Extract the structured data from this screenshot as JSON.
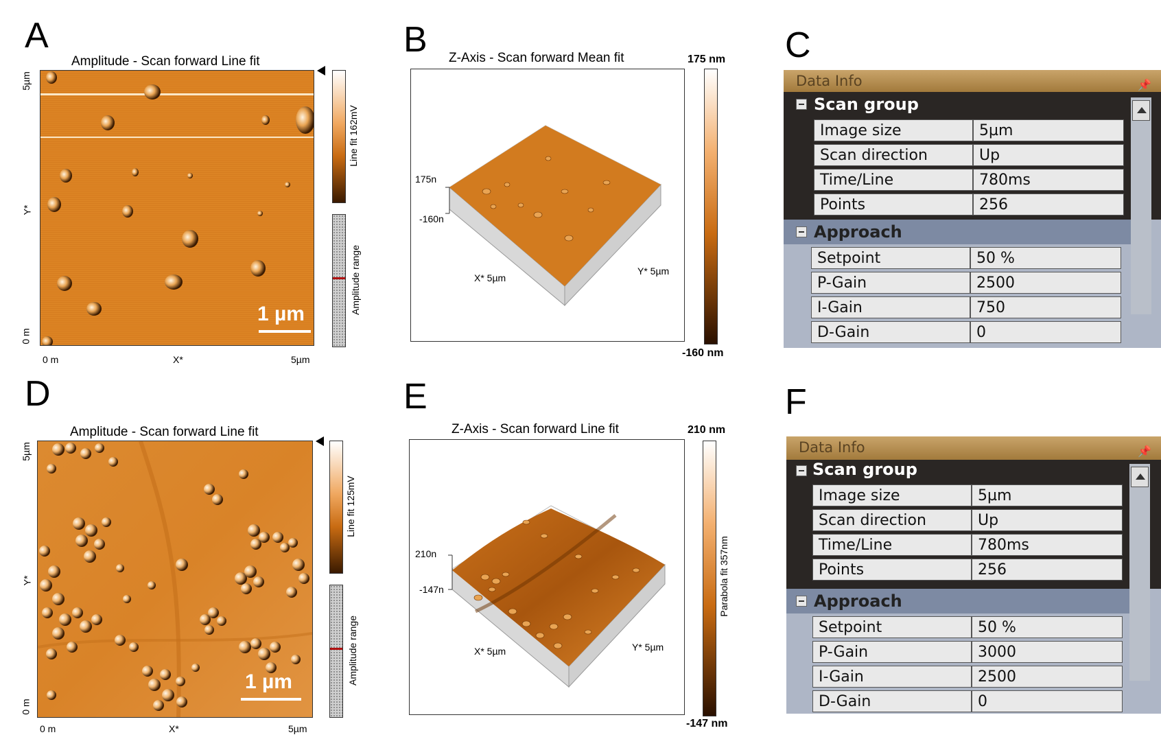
{
  "panels": {
    "A": {
      "letter": "A",
      "title": "Amplitude - Scan forward   Line fit",
      "y_top": "5µm",
      "y_mid": "Y*",
      "y_bot": "0 m",
      "x_left": "0 m",
      "x_mid": "X*",
      "x_right": "5µm",
      "colorbar_label": "Line fit 162mV",
      "range_label": "Amplitude range",
      "scalebar": "1 µm"
    },
    "B": {
      "letter": "B",
      "title": "Z-Axis - Scan forward   Mean fit",
      "cb_top": "175 nm",
      "cb_bot": "-160 nm",
      "z_top": "175n",
      "z_bot": "-160n",
      "x_label": "X* 5µm",
      "y_label": "Y* 5µm"
    },
    "C": {
      "letter": "C",
      "title": "Data Info",
      "scan_group": "Scan group",
      "approach": "Approach",
      "scan_rows": [
        {
          "label": "Image size",
          "value": "5µm"
        },
        {
          "label": "Scan direction",
          "value": "Up"
        },
        {
          "label": "Time/Line",
          "value": "780ms"
        },
        {
          "label": "Points",
          "value": "256"
        }
      ],
      "approach_rows": [
        {
          "label": "Setpoint",
          "value": "50 %"
        },
        {
          "label": "P-Gain",
          "value": "2500"
        },
        {
          "label": "I-Gain",
          "value": "750"
        },
        {
          "label": "D-Gain",
          "value": "0"
        }
      ]
    },
    "D": {
      "letter": "D",
      "title": "Amplitude - Scan forward   Line fit",
      "y_top": "5µm",
      "y_mid": "Y*",
      "y_bot": "0 m",
      "x_left": "0 m",
      "x_mid": "X*",
      "x_right": "5µm",
      "colorbar_label": "Line fit 125mV",
      "range_label": "Amplitude range",
      "scalebar": "1 µm"
    },
    "E": {
      "letter": "E",
      "title": "Z-Axis - Scan forward   Line fit",
      "cb_top": "210 nm",
      "cb_bot": "-147 nm",
      "cb_side": "Parabola fit 357nm",
      "z_top": "210n",
      "z_bot": "-147n",
      "x_label": "X* 5µm",
      "y_label": "Y* 5µm"
    },
    "F": {
      "letter": "F",
      "title": "Data Info",
      "scan_group": "Scan group",
      "approach": "Approach",
      "scan_rows": [
        {
          "label": "Image size",
          "value": "5µm"
        },
        {
          "label": "Scan direction",
          "value": "Up"
        },
        {
          "label": "Time/Line",
          "value": "780ms"
        },
        {
          "label": "Points",
          "value": "256"
        }
      ],
      "approach_rows": [
        {
          "label": "Setpoint",
          "value": "50 %"
        },
        {
          "label": "P-Gain",
          "value": "3000"
        },
        {
          "label": "I-Gain",
          "value": "2500"
        },
        {
          "label": "D-Gain",
          "value": "0"
        }
      ]
    }
  },
  "colors": {
    "afm_orange": "#d9801e",
    "afm_dark": "#3a1a00",
    "afm_light": "#fff6ea",
    "panel_header": "#b38a4c",
    "scan_group_bg": "#2a2624",
    "approach_bg": "#7d8aa3"
  }
}
